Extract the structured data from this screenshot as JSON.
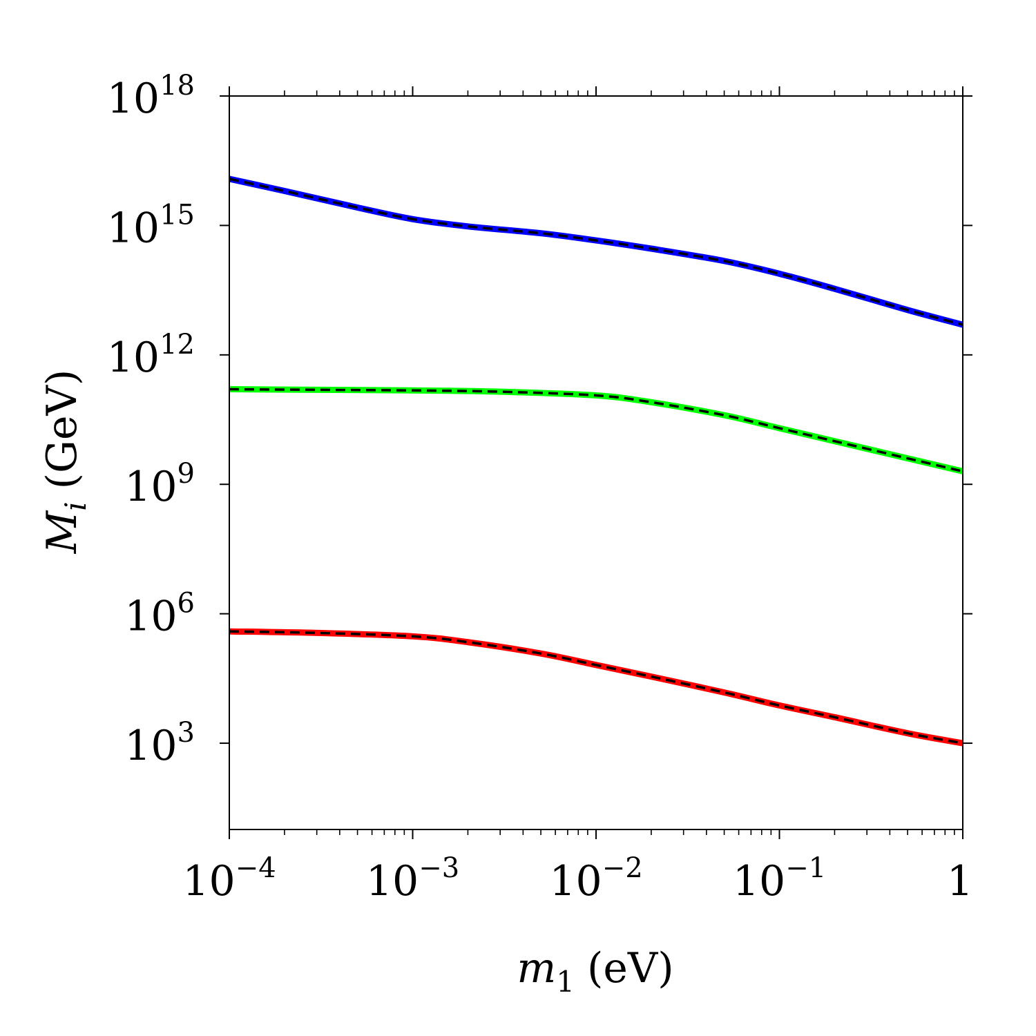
{
  "chart_data": {
    "type": "line",
    "x_scale": "log",
    "y_scale": "log",
    "xlim": [
      0.0001,
      1
    ],
    "ylim": [
      10,
      1e+18
    ],
    "xlabel": {
      "var": "m",
      "sub": "1",
      "unit": "(eV)"
    },
    "ylabel": {
      "var": "M",
      "sub": "i",
      "unit": "(GeV)"
    },
    "x_ticks": [
      {
        "value": 0.0001,
        "base": "10",
        "exp": "−4"
      },
      {
        "value": 0.001,
        "base": "10",
        "exp": "−3"
      },
      {
        "value": 0.01,
        "base": "10",
        "exp": "−2"
      },
      {
        "value": 0.1,
        "base": "10",
        "exp": "−1"
      },
      {
        "value": 1,
        "base": "1",
        "exp": ""
      }
    ],
    "y_ticks": [
      {
        "value": 1000.0,
        "base": "10",
        "exp": "3"
      },
      {
        "value": 1000000.0,
        "base": "10",
        "exp": "6"
      },
      {
        "value": 1000000000.0,
        "base": "10",
        "exp": "9"
      },
      {
        "value": 1000000000000.0,
        "base": "10",
        "exp": "12"
      },
      {
        "value": 1000000000000000.0,
        "base": "10",
        "exp": "15"
      },
      {
        "value": 1e+18,
        "base": "10",
        "exp": "18"
      }
    ],
    "grid": false,
    "legend": "none",
    "series": [
      {
        "color": "#0000ff",
        "overlay": "black dashed",
        "x": [
          0.0001,
          0.0002,
          0.0005,
          0.001,
          0.002,
          0.005,
          0.01,
          0.02,
          0.05,
          0.1,
          0.2,
          0.5,
          1
        ],
        "y": [
          1.2e+16,
          6300000000000000.0,
          2600000000000000.0,
          1400000000000000.0,
          950000000000000.0,
          660000000000000.0,
          450000000000000.0,
          290000000000000.0,
          150000000000000.0,
          76000000000000.0,
          34000000000000.0,
          11000000000000.0,
          5000000000000.0
        ]
      },
      {
        "color": "#00ff00",
        "overlay": "black dashed",
        "x": [
          0.0001,
          0.0003,
          0.001,
          0.003,
          0.01,
          0.02,
          0.05,
          0.1,
          0.2,
          0.5,
          1
        ],
        "y": [
          160000000000.0,
          155000000000.0,
          150000000000.0,
          140000000000.0,
          115000000000.0,
          80000000000.0,
          40000000000.0,
          20000000000.0,
          10000000000.0,
          4000000000.0,
          2000000000.0
        ]
      },
      {
        "color": "#ff0000",
        "overlay": "black dashed",
        "x": [
          0.0001,
          0.0003,
          0.001,
          0.002,
          0.005,
          0.01,
          0.02,
          0.05,
          0.1,
          0.2,
          0.5,
          1
        ],
        "y": [
          390000.0,
          360000.0,
          300000.0,
          220000.0,
          120000.0,
          65000.0,
          35000.0,
          15000.0,
          7500.0,
          4000.0,
          1700.0,
          1000.0
        ]
      }
    ]
  }
}
